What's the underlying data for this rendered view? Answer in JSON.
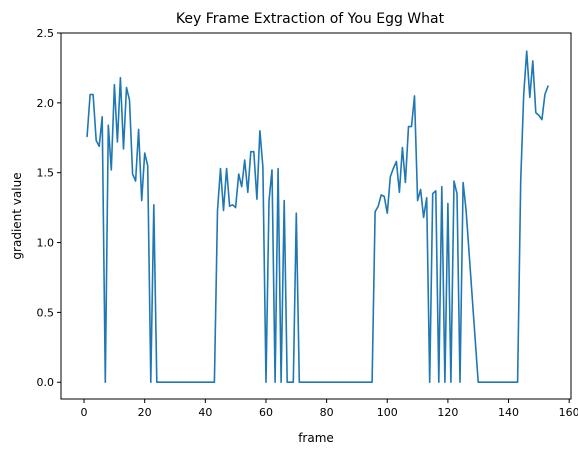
{
  "chart_data": {
    "type": "line",
    "title": "Key Frame Extraction of You Egg What",
    "xlabel": "frame",
    "ylabel": "gradient value",
    "xlim": [
      -7.6,
      160.6
    ],
    "ylim": [
      -0.12,
      2.5
    ],
    "xticks": [
      0,
      20,
      40,
      60,
      80,
      100,
      120,
      140,
      160
    ],
    "yticks": [
      0.0,
      0.5,
      1.0,
      1.5,
      2.0,
      2.5
    ],
    "xtick_labels": [
      "0",
      "20",
      "40",
      "60",
      "80",
      "100",
      "120",
      "140",
      "160"
    ],
    "ytick_labels": [
      "0.0",
      "0.5",
      "1.0",
      "1.5",
      "2.0",
      "2.5"
    ],
    "grid": false,
    "series": [
      {
        "color": "#1f77b4",
        "x": [
          1,
          2,
          3,
          4,
          5,
          6,
          7,
          8,
          9,
          10,
          11,
          12,
          13,
          14,
          15,
          16,
          17,
          18,
          19,
          20,
          21,
          22,
          23,
          24,
          25,
          30,
          35,
          40,
          43,
          44,
          45,
          46,
          47,
          48,
          49,
          50,
          51,
          52,
          53,
          54,
          55,
          56,
          57,
          58,
          59,
          60,
          61,
          62,
          63,
          64,
          65,
          66,
          67,
          68,
          69,
          70,
          71,
          72,
          73,
          80,
          90,
          95,
          96,
          97,
          98,
          99,
          100,
          101,
          102,
          103,
          104,
          105,
          106,
          107,
          108,
          109,
          110,
          111,
          112,
          113,
          114,
          115,
          116,
          117,
          118,
          119,
          120,
          121,
          122,
          123,
          124,
          125,
          126,
          130,
          135,
          140,
          143,
          144,
          145,
          146,
          147,
          148,
          149,
          150,
          151,
          152,
          153
        ],
        "y": [
          1.76,
          2.06,
          2.06,
          1.73,
          1.69,
          1.9,
          0.0,
          1.84,
          1.52,
          2.13,
          1.72,
          2.18,
          1.67,
          2.11,
          2.02,
          1.49,
          1.44,
          1.81,
          1.3,
          1.64,
          1.55,
          0.0,
          1.27,
          0.0,
          0.0,
          0.0,
          0.0,
          0.0,
          0.0,
          1.23,
          1.53,
          1.23,
          1.53,
          1.26,
          1.27,
          1.25,
          1.49,
          1.4,
          1.59,
          1.36,
          1.65,
          1.65,
          1.31,
          1.8,
          1.54,
          0.0,
          1.3,
          1.52,
          0.0,
          1.53,
          0.0,
          1.3,
          0.0,
          0.0,
          0.0,
          1.21,
          0.0,
          0.0,
          0.0,
          0.0,
          0.0,
          0.0,
          1.22,
          1.26,
          1.34,
          1.33,
          1.21,
          1.47,
          1.53,
          1.58,
          1.36,
          1.68,
          1.43,
          1.83,
          1.83,
          2.05,
          1.3,
          1.38,
          1.18,
          1.32,
          0.0,
          1.35,
          1.37,
          0.0,
          1.4,
          0.0,
          1.28,
          0.0,
          1.44,
          1.35,
          0.0,
          1.43,
          1.23,
          0.0,
          0.0,
          0.0,
          0.0,
          1.44,
          2.06,
          2.37,
          2.04,
          2.3,
          1.93,
          1.91,
          1.88,
          2.06,
          2.12
        ]
      }
    ]
  }
}
